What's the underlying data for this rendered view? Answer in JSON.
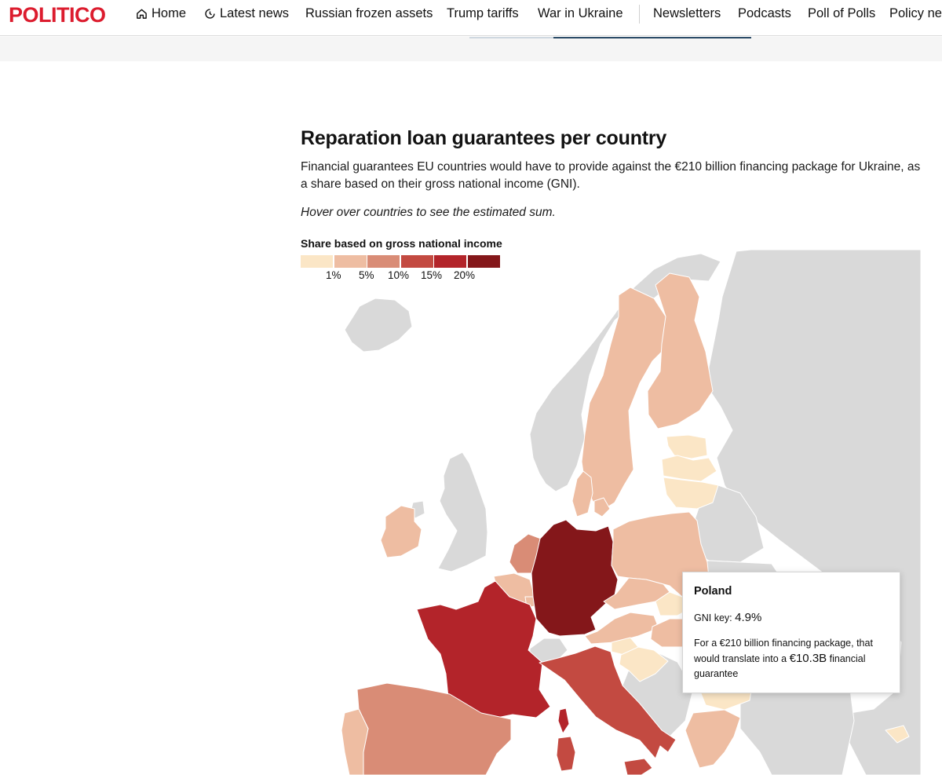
{
  "header": {
    "logo": "POLITICO",
    "nav": [
      {
        "label": "Home",
        "icon": "home-icon"
      },
      {
        "label": "Latest news",
        "icon": "clock-icon"
      },
      {
        "label": "Russian frozen assets"
      },
      {
        "label": "Trump tariffs"
      },
      {
        "label": "War in Ukraine"
      },
      {
        "label": "Newsletters"
      },
      {
        "label": "Podcasts"
      },
      {
        "label": "Poll of Polls"
      },
      {
        "label": "Policy ne"
      }
    ]
  },
  "graphic": {
    "title": "Reparation loan guarantees per country",
    "description": "Financial guarantees EU countries would have to provide against the €210 billion financing package for Ukraine, as a share based on their gross national income (GNI).",
    "hint": "Hover over countries to see the estimated sum.",
    "legend": {
      "title": "Share based on gross national income",
      "colors": [
        "#fbe6c6",
        "#eebda2",
        "#d98c76",
        "#c34a41",
        "#b3242a",
        "#84171a"
      ],
      "labels": [
        "1%",
        "5%",
        "10%",
        "15%",
        "20%"
      ]
    }
  },
  "tooltip": {
    "country": "Poland",
    "gni_prefix": "GNI key:",
    "gni_value": "4.9%",
    "text_before": "For a €210 billion financing package, that would translate into a",
    "amount": "€10.3B",
    "text_after": "financial guarantee"
  },
  "colors": {
    "brand": "#dc1c2e",
    "non_member": "#d9d9d9"
  }
}
